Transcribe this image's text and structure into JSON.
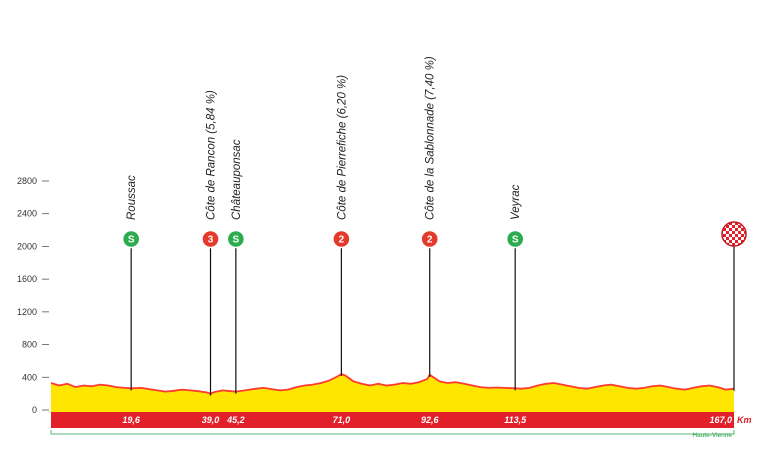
{
  "chart_data": {
    "type": "area",
    "x_unit": "Km",
    "y_ticks": [
      0,
      400,
      800,
      1200,
      1600,
      2000,
      2400,
      2800
    ],
    "ylim": [
      0,
      2800
    ],
    "xlim": [
      0,
      167
    ],
    "region": "Haute-Vienne",
    "colors": {
      "fill": "#ffe600",
      "outline": "#ff3b30",
      "band": "#e2202a",
      "region_line": "#22a04a",
      "sprint": "#2dab4f",
      "climb": "#e43a2b"
    },
    "profile": [
      [
        0,
        330
      ],
      [
        2,
        300
      ],
      [
        4,
        320
      ],
      [
        6,
        280
      ],
      [
        8,
        300
      ],
      [
        10,
        290
      ],
      [
        12,
        310
      ],
      [
        14,
        300
      ],
      [
        16,
        280
      ],
      [
        18,
        270
      ],
      [
        19.6,
        265
      ],
      [
        22,
        270
      ],
      [
        24,
        255
      ],
      [
        26,
        240
      ],
      [
        28,
        225
      ],
      [
        30,
        235
      ],
      [
        32,
        250
      ],
      [
        34,
        240
      ],
      [
        36,
        230
      ],
      [
        38,
        215
      ],
      [
        39,
        200
      ],
      [
        40,
        220
      ],
      [
        42,
        240
      ],
      [
        44,
        230
      ],
      [
        45.2,
        225
      ],
      [
        48,
        245
      ],
      [
        50,
        260
      ],
      [
        52,
        270
      ],
      [
        54,
        255
      ],
      [
        56,
        240
      ],
      [
        58,
        250
      ],
      [
        60,
        280
      ],
      [
        62,
        300
      ],
      [
        64,
        310
      ],
      [
        66,
        330
      ],
      [
        68,
        360
      ],
      [
        70,
        410
      ],
      [
        71,
        440
      ],
      [
        72,
        420
      ],
      [
        74,
        350
      ],
      [
        76,
        320
      ],
      [
        78,
        300
      ],
      [
        80,
        320
      ],
      [
        82,
        300
      ],
      [
        84,
        310
      ],
      [
        86,
        330
      ],
      [
        88,
        320
      ],
      [
        90,
        340
      ],
      [
        92,
        380
      ],
      [
        92.6,
        430
      ],
      [
        93.5,
        400
      ],
      [
        95,
        350
      ],
      [
        97,
        330
      ],
      [
        99,
        340
      ],
      [
        101,
        320
      ],
      [
        103,
        300
      ],
      [
        105,
        280
      ],
      [
        107,
        270
      ],
      [
        109,
        275
      ],
      [
        111,
        270
      ],
      [
        113.5,
        265
      ],
      [
        115,
        260
      ],
      [
        117,
        270
      ],
      [
        119,
        300
      ],
      [
        121,
        320
      ],
      [
        123,
        330
      ],
      [
        125,
        310
      ],
      [
        127,
        290
      ],
      [
        129,
        270
      ],
      [
        131,
        260
      ],
      [
        133,
        280
      ],
      [
        135,
        300
      ],
      [
        137,
        310
      ],
      [
        139,
        290
      ],
      [
        141,
        270
      ],
      [
        143,
        260
      ],
      [
        145,
        270
      ],
      [
        147,
        290
      ],
      [
        149,
        300
      ],
      [
        151,
        280
      ],
      [
        153,
        260
      ],
      [
        155,
        250
      ],
      [
        157,
        270
      ],
      [
        159,
        290
      ],
      [
        161,
        300
      ],
      [
        163,
        280
      ],
      [
        165,
        250
      ],
      [
        167,
        260
      ]
    ],
    "waypoints": [
      {
        "name": "Roussac",
        "km": 19.6,
        "km_label": "19,6",
        "badge": "S",
        "kind": "sprint"
      },
      {
        "name": "Côte de Rancon (5,84 %)",
        "km": 39.0,
        "km_label": "39,0",
        "badge": "3",
        "kind": "climb"
      },
      {
        "name": "Châteauponsac",
        "km": 45.2,
        "km_label": "45,2",
        "badge": "S",
        "kind": "sprint"
      },
      {
        "name": "Côte de Pierrefiche (6,20 %)",
        "km": 71.0,
        "km_label": "71,0",
        "badge": "2",
        "kind": "climb"
      },
      {
        "name": "Côte de la Sablonnade (7,40 %)",
        "km": 92.6,
        "km_label": "92,6",
        "badge": "2",
        "kind": "climb"
      },
      {
        "name": "Veyrac",
        "km": 113.5,
        "km_label": "113,5",
        "badge": "S",
        "kind": "sprint"
      },
      {
        "name": "",
        "km": 167.0,
        "km_label": "167,0",
        "badge": "",
        "kind": "finish"
      }
    ]
  }
}
